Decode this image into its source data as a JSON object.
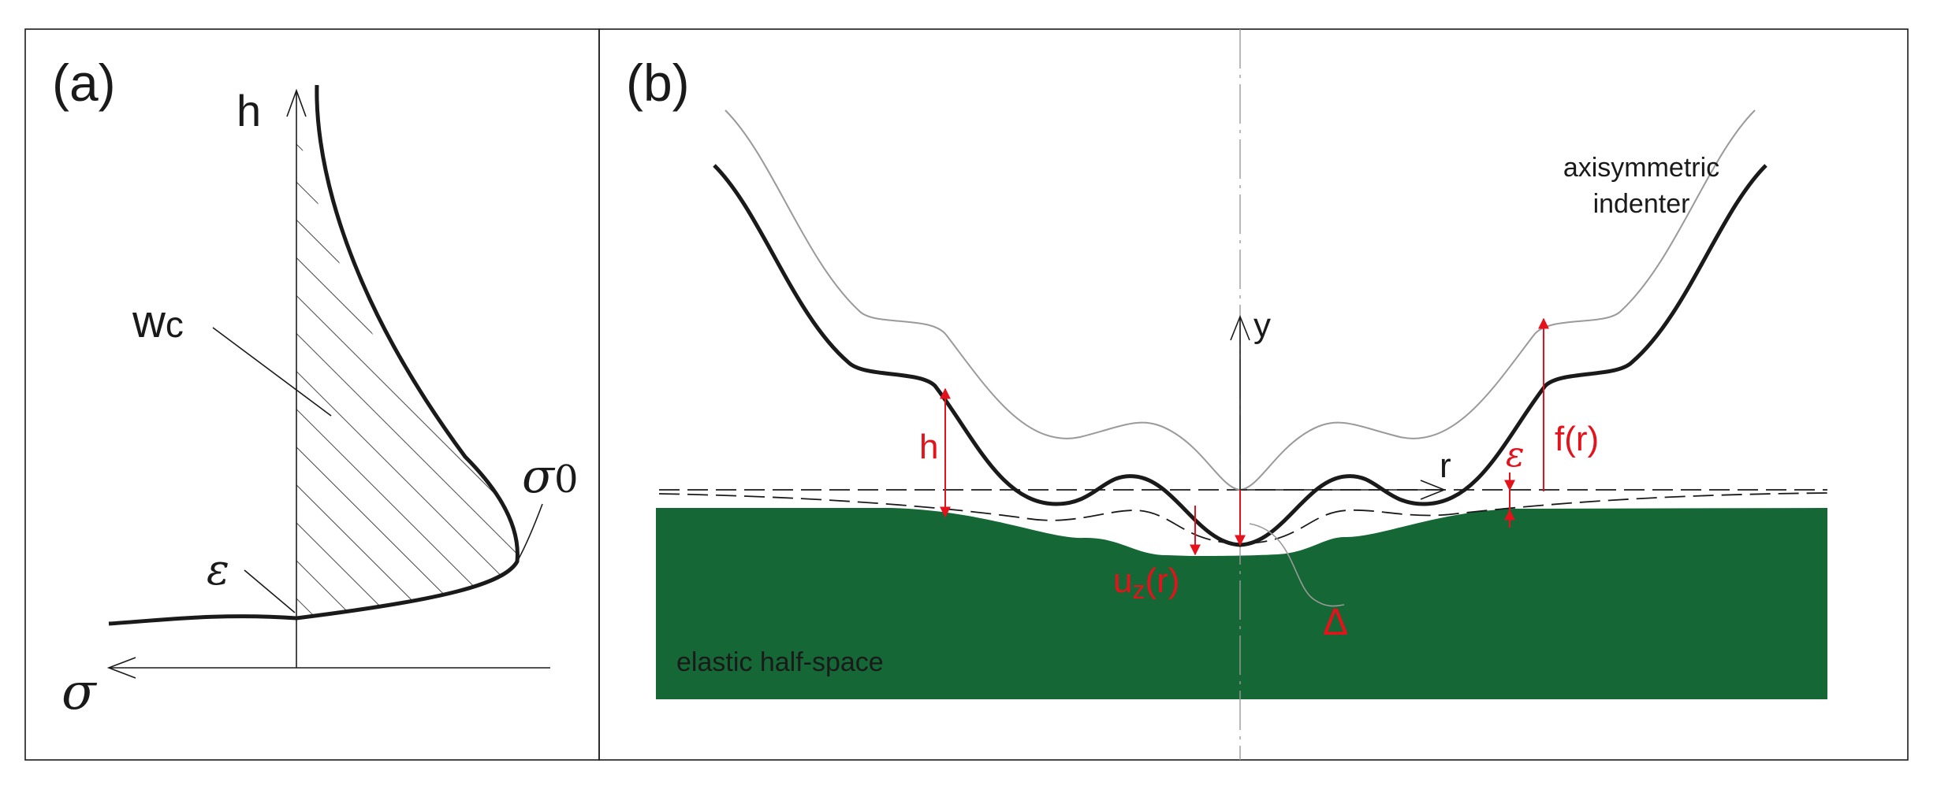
{
  "panel_a": {
    "tag": "(a)",
    "axis_h": "h",
    "axis_sigma": "σ",
    "label_wc": "w",
    "label_wc_sub": "c",
    "label_epsilon": "ε",
    "label_sigma0": "σ",
    "label_sigma0_sub": "0"
  },
  "panel_b": {
    "tag": "(b)",
    "axis_y": "y",
    "axis_r": "r",
    "label_indenter": [
      "axisymmetric",
      "indenter"
    ],
    "label_halfspace": "elastic half-space",
    "label_h": "h",
    "label_f": "f(r)",
    "label_eps": "ε",
    "label_uz": "u",
    "label_uz_sub": "z",
    "label_uz_arg": "(r)",
    "label_delta": "Δ"
  },
  "colors": {
    "substrate": "#156736",
    "annotation": "#e3121b",
    "line": "#1a1a1a",
    "ghost": "#9a9a9a"
  }
}
